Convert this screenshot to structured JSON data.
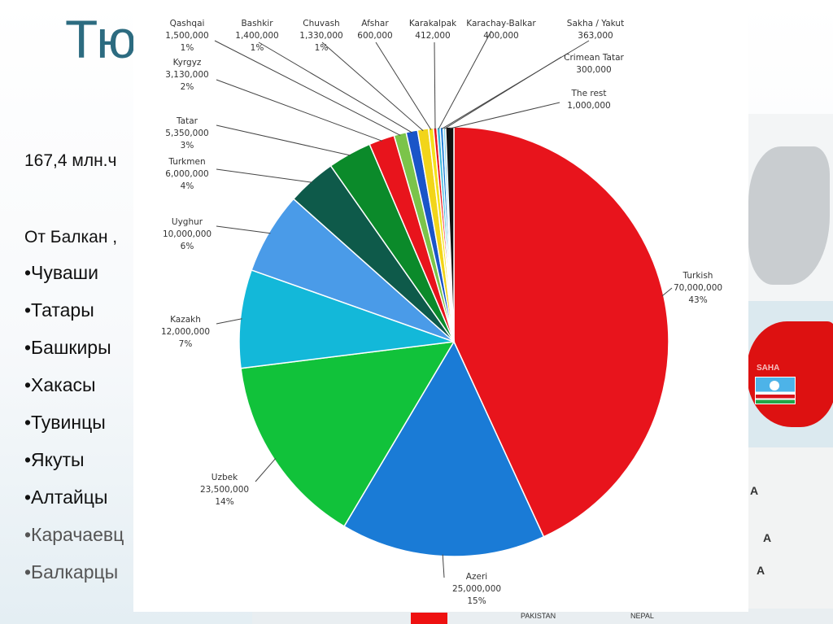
{
  "slide": {
    "title": "Тю",
    "population_line": "167,4 млн.ч",
    "range_line": "От Балкан ,",
    "bullets": [
      "•Чуваши",
      "•Татары",
      "•Башкиры",
      "•Хакасы",
      "•Тувинцы",
      "•Якуты",
      "•Алтайцы",
      "•Карачаевц",
      "•Балкарцы"
    ]
  },
  "map": {
    "region_label": "SAHA",
    "letters": [
      "A",
      "A",
      "A"
    ],
    "bottom_labels": [
      "PAKISTAN",
      "NEPAL"
    ],
    "region_color": "#dd1111"
  },
  "chart_data": {
    "type": "pie",
    "title": "",
    "slices": [
      {
        "name": "Turkish",
        "value": 70000000,
        "value_label": "70,000,000",
        "pct": "43%",
        "color": "#e8141c"
      },
      {
        "name": "Azeri",
        "value": 25000000,
        "value_label": "25,000,000",
        "pct": "15%",
        "color": "#1a7bd6"
      },
      {
        "name": "Uzbek",
        "value": 23500000,
        "value_label": "23,500,000",
        "pct": "14%",
        "color": "#11c23a"
      },
      {
        "name": "Kazakh",
        "value": 12000000,
        "value_label": "12,000,000",
        "pct": "7%",
        "color": "#13b8d9"
      },
      {
        "name": "Uyghur",
        "value": 10000000,
        "value_label": "10,000,000",
        "pct": "6%",
        "color": "#4a9be8"
      },
      {
        "name": "Turkmen",
        "value": 6000000,
        "value_label": "6,000,000",
        "pct": "4%",
        "color": "#0e5a4a"
      },
      {
        "name": "Tatar",
        "value": 5350000,
        "value_label": "5,350,000",
        "pct": "3%",
        "color": "#0b8a2a"
      },
      {
        "name": "Kyrgyz",
        "value": 3130000,
        "value_label": "3,130,000",
        "pct": "2%",
        "color": "#e8141c"
      },
      {
        "name": "Qashqai",
        "value": 1500000,
        "value_label": "1,500,000",
        "pct": "1%",
        "color": "#7bc44a"
      },
      {
        "name": "Bashkir",
        "value": 1400000,
        "value_label": "1,400,000",
        "pct": "1%",
        "color": "#1a55c8"
      },
      {
        "name": "Chuvash",
        "value": 1330000,
        "value_label": "1,330,000",
        "pct": "1%",
        "color": "#f2d51a"
      },
      {
        "name": "Afshar",
        "value": 600000,
        "value_label": "600,000",
        "pct": "",
        "color": "#f5e11a"
      },
      {
        "name": "Karakalpak",
        "value": 412000,
        "value_label": "412,000",
        "pct": "",
        "color": "#e8141c"
      },
      {
        "name": "Karachay-Balkar",
        "value": 400000,
        "value_label": "400,000",
        "pct": "",
        "color": "#38b7d8"
      },
      {
        "name": "Sakha / Yakut",
        "value": 363000,
        "value_label": "363,000",
        "pct": "",
        "color": "#1a7bd6"
      },
      {
        "name": "Crimean Tatar",
        "value": 300000,
        "value_label": "300,000",
        "pct": "",
        "color": "#84d0e8"
      },
      {
        "name": "The rest",
        "value": 1000000,
        "value_label": "1,000,000",
        "pct": "",
        "color": "#111111"
      }
    ]
  }
}
